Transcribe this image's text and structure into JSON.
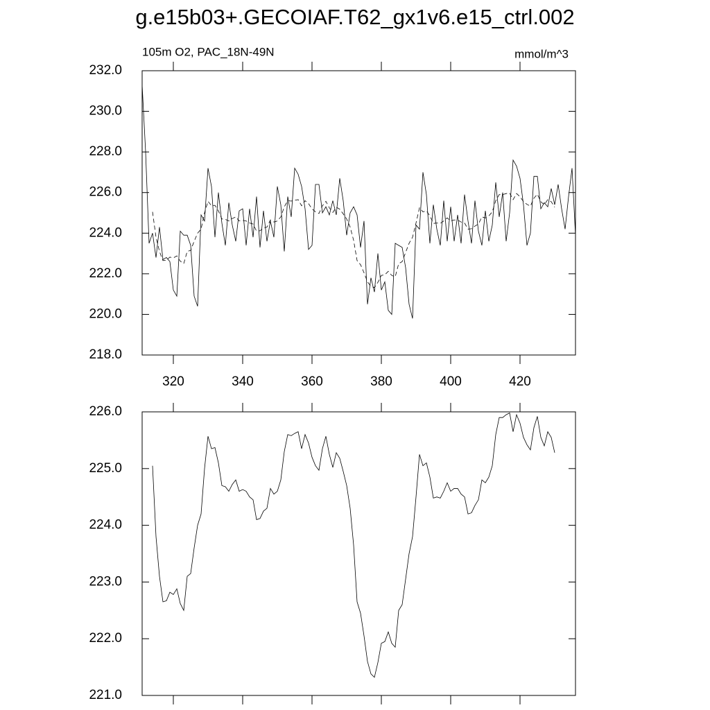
{
  "title": "g.e15b03+.GECOIAF.T62_gx1v6.e15_ctrl.002",
  "chart_data": [
    {
      "type": "line",
      "subtitle_left": "105m O2, PAC_18N-49N",
      "subtitle_right": "mmol/m^3",
      "x": [
        311,
        312,
        313,
        314,
        315,
        316,
        317,
        318,
        319,
        320,
        321,
        322,
        323,
        324,
        325,
        326,
        327,
        328,
        329,
        330,
        331,
        332,
        333,
        334,
        335,
        336,
        337,
        338,
        339,
        340,
        341,
        342,
        343,
        344,
        345,
        346,
        347,
        348,
        349,
        350,
        351,
        352,
        353,
        354,
        355,
        356,
        357,
        358,
        359,
        360,
        361,
        362,
        363,
        364,
        365,
        366,
        367,
        368,
        369,
        370,
        371,
        372,
        373,
        374,
        375,
        376,
        377,
        378,
        379,
        380,
        381,
        382,
        383,
        384,
        385,
        386,
        387,
        388,
        389,
        390,
        391,
        392,
        393,
        394,
        395,
        396,
        397,
        398,
        399,
        400,
        401,
        402,
        403,
        404,
        405,
        406,
        407,
        408,
        409,
        410,
        411,
        412,
        413,
        414,
        415,
        416,
        417,
        418,
        419,
        420,
        421,
        422,
        423,
        424,
        425,
        426,
        427,
        428,
        429,
        430,
        431,
        432,
        433,
        434,
        435,
        436
      ],
      "series": [
        {
          "color": "#000000",
          "dashed": false,
          "values": [
            231.3,
            228,
            223.5,
            224,
            222.8,
            224.3,
            222.7,
            222.8,
            222.6,
            221.2,
            220.9,
            224.1,
            223.9,
            223.9,
            223.4,
            220.9,
            220.4,
            224.9,
            224.6,
            227.2,
            226.3,
            223.8,
            226,
            224.5,
            223.4,
            225.5,
            224.4,
            223.6,
            225.1,
            225.2,
            223.4,
            225.2,
            223.8,
            225.8,
            223.3,
            225.1,
            223.6,
            224.6,
            223.8,
            226.3,
            225.4,
            223.1,
            225.8,
            224.8,
            227.2,
            226.9,
            226.3,
            225.2,
            223.2,
            223.4,
            226.4,
            226.4,
            225,
            225.3,
            224.9,
            225.6,
            224.9,
            226.7,
            225.6,
            223.9,
            225,
            225.3,
            224.9,
            223.3,
            224.6,
            220.5,
            221.8,
            221.1,
            223,
            221.2,
            221.6,
            220.2,
            220,
            223.5,
            223.4,
            223.3,
            222.3,
            220.5,
            219.8,
            224.4,
            224.2,
            227,
            225.9,
            223.5,
            225.4,
            224.2,
            223.4,
            225.6,
            223.6,
            225.3,
            223.6,
            224.9,
            223.5,
            225.9,
            224.6,
            223.5,
            225.6,
            224.1,
            223.4,
            225.1,
            223.6,
            224.4,
            226.5,
            224.8,
            226,
            223.6,
            225,
            227.6,
            227.3,
            226.7,
            225.4,
            223.4,
            224,
            226.8,
            226.8,
            225.2,
            225.5,
            225.3,
            226.2,
            225.4,
            226.4,
            225.2,
            224.2,
            225.8,
            227.2,
            223.9
          ]
        },
        {
          "color": "#000000",
          "dashed": true,
          "values": [
            null,
            null,
            null,
            225.05,
            223.8,
            223.1,
            222.65,
            222.67,
            222.82,
            222.78,
            222.88,
            222.62,
            222.5,
            223.1,
            223.15,
            223.6,
            224.0,
            224.2,
            225.0,
            225.57,
            225.35,
            225.37,
            225.1,
            224.7,
            224.68,
            224.6,
            224.72,
            224.8,
            224.6,
            224.63,
            224.6,
            224.5,
            224.45,
            224.1,
            224.12,
            224.25,
            224.3,
            224.65,
            224.55,
            224.6,
            224.8,
            225.3,
            225.6,
            225.58,
            225.62,
            225.65,
            225.35,
            225.6,
            225.45,
            225.2,
            225.05,
            224.97,
            225.35,
            225.57,
            225.25,
            225.02,
            225.28,
            225.18,
            224.95,
            224.7,
            224.3,
            223.65,
            222.65,
            222.45,
            222.05,
            221.6,
            221.38,
            221.32,
            221.58,
            221.92,
            221.95,
            222.12,
            221.92,
            221.85,
            222.5,
            222.6,
            223.05,
            223.5,
            223.8,
            224.5,
            225.25,
            225.05,
            225.1,
            224.85,
            224.48,
            224.5,
            224.48,
            224.6,
            224.75,
            224.6,
            224.65,
            224.65,
            224.55,
            224.5,
            224.2,
            224.22,
            224.35,
            224.45,
            224.8,
            224.75,
            224.85,
            225.05,
            225.6,
            225.9,
            225.9,
            225.95,
            225.98,
            225.65,
            225.95,
            225.8,
            225.55,
            225.42,
            225.33,
            225.72,
            225.92,
            225.55,
            225.4,
            225.65,
            225.55,
            225.28,
            null,
            null,
            null,
            null,
            null,
            null
          ]
        }
      ],
      "xlim": [
        311,
        436
      ],
      "xticks": [
        320,
        340,
        360,
        380,
        400,
        420
      ],
      "xtick_labels": true,
      "ylim": [
        218,
        232
      ],
      "yticks": [
        {
          "value": 218,
          "label": "218.0"
        },
        {
          "value": 220,
          "label": "220.0"
        },
        {
          "value": 222,
          "label": "222.0"
        },
        {
          "value": 224,
          "label": "224.0"
        },
        {
          "value": 226,
          "label": "226.0"
        },
        {
          "value": 228,
          "label": "228.0"
        },
        {
          "value": 230,
          "label": "230.0"
        },
        {
          "value": 232,
          "label": "232.0"
        }
      ]
    },
    {
      "type": "line",
      "x": [
        314,
        315,
        316,
        317,
        318,
        319,
        320,
        321,
        322,
        323,
        324,
        325,
        326,
        327,
        328,
        329,
        330,
        331,
        332,
        333,
        334,
        335,
        336,
        337,
        338,
        339,
        340,
        341,
        342,
        343,
        344,
        345,
        346,
        347,
        348,
        349,
        350,
        351,
        352,
        353,
        354,
        355,
        356,
        357,
        358,
        359,
        360,
        361,
        362,
        363,
        364,
        365,
        366,
        367,
        368,
        369,
        370,
        371,
        372,
        373,
        374,
        375,
        376,
        377,
        378,
        379,
        380,
        381,
        382,
        383,
        384,
        385,
        386,
        387,
        388,
        389,
        390,
        391,
        392,
        393,
        394,
        395,
        396,
        397,
        398,
        399,
        400,
        401,
        402,
        403,
        404,
        405,
        406,
        407,
        408,
        409,
        410,
        411,
        412,
        413,
        414,
        415,
        416,
        417,
        418,
        419,
        420,
        421,
        422,
        423,
        424,
        425,
        426,
        427,
        428,
        429,
        430
      ],
      "series": [
        {
          "color": "#000000",
          "dashed": false,
          "values": [
            225.05,
            223.8,
            223.1,
            222.65,
            222.67,
            222.82,
            222.78,
            222.88,
            222.62,
            222.5,
            223.1,
            223.15,
            223.6,
            224.0,
            224.2,
            225.0,
            225.57,
            225.35,
            225.37,
            225.1,
            224.7,
            224.68,
            224.6,
            224.72,
            224.8,
            224.6,
            224.63,
            224.6,
            224.5,
            224.45,
            224.1,
            224.12,
            224.25,
            224.3,
            224.65,
            224.55,
            224.6,
            224.8,
            225.3,
            225.6,
            225.58,
            225.62,
            225.65,
            225.35,
            225.6,
            225.45,
            225.2,
            225.05,
            224.97,
            225.35,
            225.57,
            225.25,
            225.02,
            225.28,
            225.18,
            224.95,
            224.7,
            224.3,
            223.65,
            222.65,
            222.45,
            222.05,
            221.6,
            221.38,
            221.32,
            221.58,
            221.92,
            221.95,
            222.12,
            221.92,
            221.85,
            222.5,
            222.6,
            223.05,
            223.5,
            223.8,
            224.5,
            225.25,
            225.05,
            225.1,
            224.85,
            224.48,
            224.5,
            224.48,
            224.6,
            224.75,
            224.6,
            224.65,
            224.65,
            224.55,
            224.5,
            224.2,
            224.22,
            224.35,
            224.45,
            224.8,
            224.75,
            224.85,
            225.05,
            225.6,
            225.9,
            225.9,
            225.95,
            225.98,
            225.65,
            225.95,
            225.8,
            225.55,
            225.42,
            225.33,
            225.72,
            225.92,
            225.55,
            225.4,
            225.65,
            225.55,
            225.28
          ]
        }
      ],
      "xlim": [
        311,
        436
      ],
      "xticks": [
        320,
        340,
        360,
        380,
        400,
        420
      ],
      "xtick_labels": false,
      "ylim": [
        221,
        226
      ],
      "yticks": [
        {
          "value": 221,
          "label": "221.0"
        },
        {
          "value": 222,
          "label": "222.0"
        },
        {
          "value": 223,
          "label": "223.0"
        },
        {
          "value": 224,
          "label": "224.0"
        },
        {
          "value": 225,
          "label": "225.0"
        },
        {
          "value": 226,
          "label": "226.0"
        }
      ]
    }
  ]
}
